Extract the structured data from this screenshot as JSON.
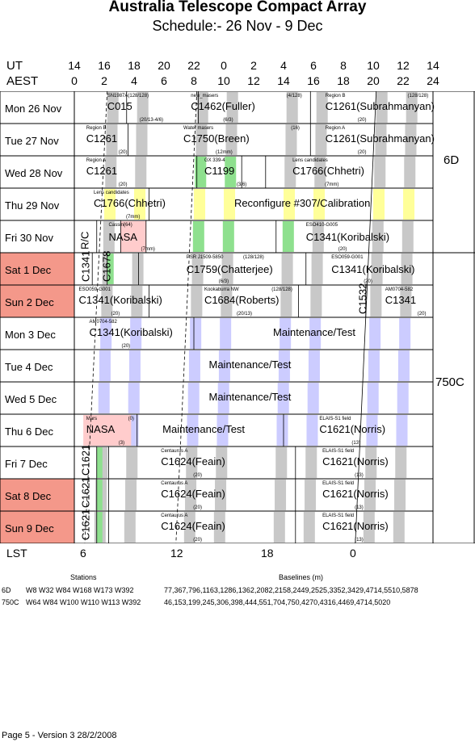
{
  "title": "Australia Telescope Compact Array",
  "subtitle": "Schedule:- 26 Nov - 9  Dec",
  "header": {
    "ut_label": "UT",
    "aest_label": "AEST",
    "ut_ticks": [
      "14",
      "16",
      "18",
      "20",
      "22",
      "0",
      "2",
      "4",
      "6",
      "8",
      "10",
      "12",
      "14"
    ],
    "aest_ticks": [
      "0",
      "2",
      "4",
      "6",
      "8",
      "10",
      "12",
      "14",
      "16",
      "18",
      "20",
      "22",
      "24"
    ]
  },
  "days": [
    {
      "label": "Mon  26 Nov",
      "weekend": false
    },
    {
      "label": "Tue  27 Nov",
      "weekend": false
    },
    {
      "label": "Wed  28 Nov",
      "weekend": false
    },
    {
      "label": "Thu  29 Nov",
      "weekend": false
    },
    {
      "label": "Fri   30 Nov",
      "weekend": false
    },
    {
      "label": "Sat   1  Dec",
      "weekend": true
    },
    {
      "label": "Sun   2  Dec",
      "weekend": true
    },
    {
      "label": "Mon   3  Dec",
      "weekend": false
    },
    {
      "label": "Tue   4  Dec",
      "weekend": false
    },
    {
      "label": "Wed   5  Dec",
      "weekend": false
    },
    {
      "label": "Thu   6  Dec",
      "weekend": false
    },
    {
      "label": "Fri    7  Dec",
      "weekend": false
    },
    {
      "label": "Sat    8  Dec",
      "weekend": true
    },
    {
      "label": "Sun   9  Dec",
      "weekend": true
    }
  ],
  "configs": [
    {
      "label": "6D"
    },
    {
      "label": "750C"
    }
  ],
  "blocks": [
    {
      "text": "C015",
      "sub": "SN1987A(128/128)",
      "note": "(20/13-4/6)"
    },
    {
      "text": "C1462(Fuller)",
      "sub": "new_masers",
      "note": "(6/3)"
    },
    {
      "text": "C1261(Subrahmanyan)",
      "sub": "Region B",
      "note": "(20)"
    },
    {
      "text": "C1261",
      "sub": "Region B",
      "note": "(20)"
    },
    {
      "text": "C1750(Breen)",
      "sub": "Water masers",
      "note": "(12mm)"
    },
    {
      "text": "C1261(Subrahmanyan)",
      "sub": "Region A",
      "note": "(20)"
    },
    {
      "text": "C1261",
      "sub": "Region A",
      "note": "(20)"
    },
    {
      "text": "C1199",
      "sub": "GX 339-4",
      "note": "(3/6)"
    },
    {
      "text": "C1766(Chhetri)",
      "sub": "Lens candidates",
      "note": "(7mm)"
    },
    {
      "text": "C1766(Chhetri)",
      "sub": "Lens candidates",
      "note": "(7mm)"
    },
    {
      "text": "Reconfigure #307/Calibration",
      "sub": "",
      "note": ""
    },
    {
      "text": "R/C",
      "sub": "",
      "note": ""
    },
    {
      "text": "NASA",
      "sub": "Cassini",
      "note": "(7mm)"
    },
    {
      "text": "C1341(Koribalski)",
      "sub": "ESO410-G005",
      "note": "(20)"
    },
    {
      "text": "C1341",
      "sub": "",
      "note": ""
    },
    {
      "text": "C1678",
      "sub": "",
      "note": ""
    },
    {
      "text": "C1759(Chatterjee)",
      "sub": "PSR J1509-5850",
      "note": "(6/3)"
    },
    {
      "text": "C1341(Koribalski)",
      "sub": "ESO059-G001",
      "note": "(20)"
    },
    {
      "text": "C1341(Koribalski)",
      "sub": "ESO059-G001",
      "note": "(20)"
    },
    {
      "text": "C1684(Roberts)",
      "sub": "Kookaburra NW",
      "note": "(20/13)"
    },
    {
      "text": "C1532",
      "sub": "",
      "note": ""
    },
    {
      "text": "C1341",
      "sub": "AM0704-582",
      "note": "(20)"
    },
    {
      "text": "C1341(Koribalski)",
      "sub": "AM0704-582",
      "note": "(20)"
    },
    {
      "text": "Maintenance/Test",
      "sub": "",
      "note": ""
    },
    {
      "text": "Maintenance/Test",
      "sub": "",
      "note": ""
    },
    {
      "text": "Maintenance/Test",
      "sub": "",
      "note": ""
    },
    {
      "text": "NASA",
      "sub": "Mars",
      "note": "(3)"
    },
    {
      "text": "Maintenance/Test",
      "sub": "",
      "note": ""
    },
    {
      "text": "C1621(Norris)",
      "sub": "ELAIS-S1 field",
      "note": "(13)"
    },
    {
      "text": "C1621",
      "sub": "",
      "note": ""
    },
    {
      "text": "C1624(Feain)",
      "sub": "Centaurus A",
      "note": "(20)"
    },
    {
      "text": "C1621(Norris)",
      "sub": "ELAIS-S1 field",
      "note": "(13)"
    },
    {
      "text": "C1621",
      "sub": "",
      "note": ""
    },
    {
      "text": "C1624(Feain)",
      "sub": "Centaurus A",
      "note": "(20)"
    },
    {
      "text": "C1621(Norris)",
      "sub": "ELAIS-S1 field",
      "note": "(13)"
    },
    {
      "text": "C1621",
      "sub": "",
      "note": ""
    },
    {
      "text": "C1624(Feain)",
      "sub": "Centaurus A",
      "note": "(20)"
    },
    {
      "text": "C1621(Norris)",
      "sub": "ELAIS-S1 field",
      "note": "(13)"
    }
  ],
  "small_labels": [
    "(128/128)",
    "(4/128)",
    "(16)",
    "(64)",
    "(128/128)",
    "(128/128)",
    "(0)"
  ],
  "lst": {
    "label": "LST",
    "ticks": [
      "6",
      "12",
      "18",
      "0"
    ]
  },
  "stations": {
    "heading": "Stations",
    "rows": [
      {
        "config": "6D",
        "stations": "W8 W32 W84 W168 W173 W392"
      },
      {
        "config": "750C",
        "stations": "W64 W84 W100 W110 W113 W392"
      }
    ]
  },
  "baselines": {
    "heading": "Baselines (m)",
    "rows": [
      "77,367,796,1163,1286,1362,2082,2158,2449,2525,3352,3429,4714,5510,5878",
      "46,153,199,245,306,398,444,551,704,750,4270,4316,4469,4714,5020"
    ]
  },
  "footer": "Page 5 - Version 3  28/2/2008",
  "colors": {
    "weekend": "#f4988a",
    "grey": "#c8c8c8",
    "green": "#8ee08e",
    "yellow": "#ffff99",
    "blue": "#ccccff",
    "pink": "#ffcccc"
  }
}
